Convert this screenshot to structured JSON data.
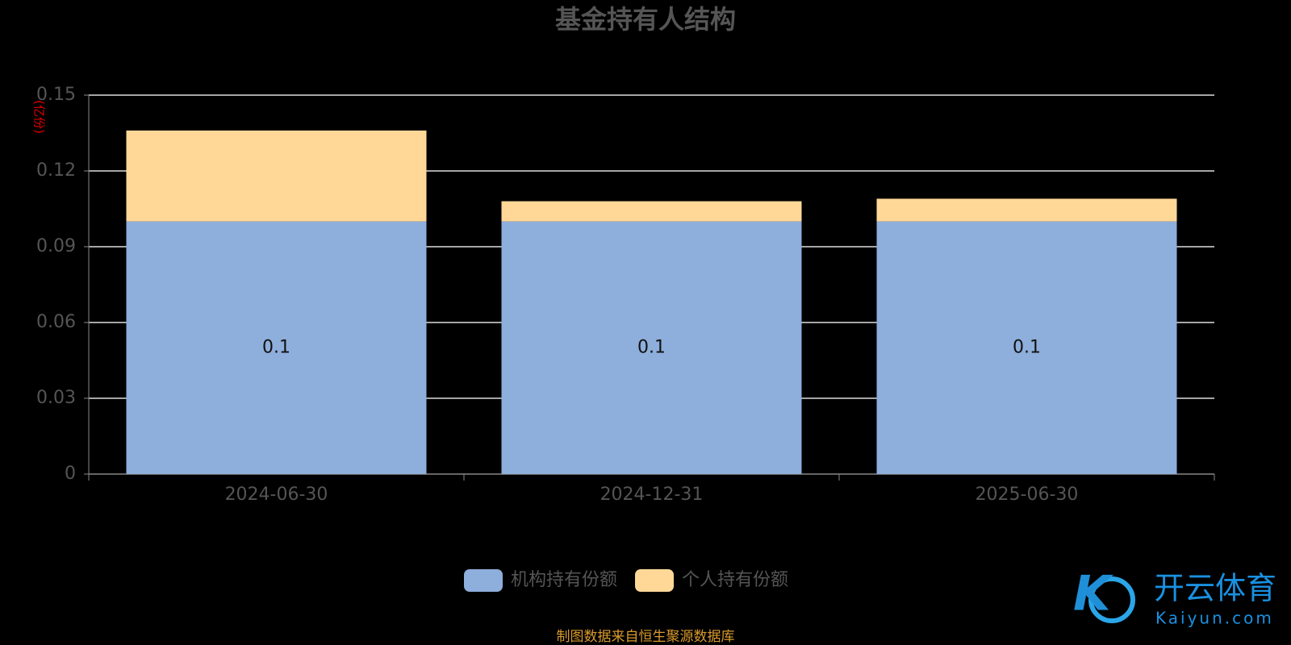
{
  "chart_data": {
    "type": "stacked_bar",
    "title": "基金持有人结构",
    "y_axis_label": "(亿份)",
    "categories": [
      "2024-06-30",
      "2024-12-31",
      "2025-06-30"
    ],
    "series": [
      {
        "name": "机构持有份额",
        "color": "#8eaedb",
        "values": [
          0.1,
          0.1,
          0.1
        ],
        "show_values": true
      },
      {
        "name": "个人持有份额",
        "color": "#ffd898",
        "values": [
          0.036,
          0.008,
          0.009
        ],
        "show_values": false
      }
    ],
    "ylim": [
      0,
      0.15
    ],
    "yticks": [
      0,
      0.03,
      0.06,
      0.09,
      0.12,
      0.15
    ],
    "grid": true,
    "legend": "bottom",
    "source": "制图数据来自恒生聚源数据库",
    "watermark": {
      "name": "开云体育",
      "url": "Kaiyun.com"
    }
  }
}
